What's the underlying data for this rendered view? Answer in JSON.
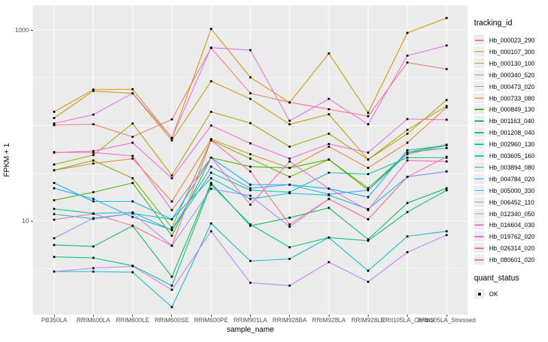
{
  "figure": {
    "background": "#FFFFFF",
    "panel_background": "#EBEBEB",
    "gridline_color": "#FFFFFF",
    "point_color": "#000000",
    "tick_color": "#333333",
    "tick_label_color": "#4D4D4D"
  },
  "y_axis": {
    "title": "FPKM + 1",
    "scale": "log10",
    "ticks": [
      {
        "label": "1000",
        "value": 1000
      },
      {
        "label": "10",
        "value": 10
      }
    ]
  },
  "x_axis": {
    "title": "sample_name"
  },
  "legend": {
    "tracking_title": "tracking_id",
    "quant_title": "quant_status",
    "quant_label": "OK"
  },
  "chart_data": {
    "type": "line",
    "xlabel": "sample_name",
    "ylabel": "FPKM + 1",
    "y_scale": "log10",
    "ylim": [
      1,
      1800
    ],
    "y_breaks_labeled": [
      10,
      1000
    ],
    "y_major_gridlines": [
      10,
      100,
      1000
    ],
    "grid": "on",
    "legend_position": "right",
    "point_shape": "filled-square",
    "quant_status": "OK",
    "categories": [
      "PB350LA",
      "RRIM600LA",
      "RRIM600LE",
      "RRIM600SE",
      "RRIM600PE",
      "RRIM901LA",
      "RRIM928BA",
      "RRIM928LA",
      "RRIM928LE",
      "RRII105LA_Control",
      "RRII105LA_Stressed"
    ],
    "series": [
      {
        "name": "Hb_000023_290",
        "color": "#F8766D",
        "values": [
          101,
          103,
          76,
          116,
          650,
          218,
          175,
          148,
          125,
          457,
          390
        ]
      },
      {
        "name": "Hb_000107_300",
        "color": "#EA8331",
        "values": [
          34,
          40,
          45,
          16,
          72,
          50,
          36,
          60,
          36,
          66,
          155
        ]
      },
      {
        "name": "Hb_000130_100",
        "color": "#D89000",
        "values": [
          139,
          238,
          240,
          74,
          1030,
          320,
          174,
          570,
          136,
          935,
          1340
        ]
      },
      {
        "name": "Hb_000340_520",
        "color": "#C09B00",
        "values": [
          120,
          230,
          217,
          70,
          291,
          190,
          103,
          131,
          44,
          90,
          160
        ]
      },
      {
        "name": "Hb_000473_020",
        "color": "#A3A500",
        "values": [
          39,
          49,
          105,
          30,
          139,
          106,
          60,
          82,
          44,
          82,
          185
        ]
      },
      {
        "name": "Hb_000733_080",
        "color": "#7CAE00",
        "values": [
          34,
          43,
          28,
          8.5,
          70,
          45,
          29,
          44,
          21,
          50,
          62
        ]
      },
      {
        "name": "Hb_000849_130",
        "color": "#39B600",
        "values": [
          16.5,
          20,
          25,
          7,
          46,
          37,
          36,
          44,
          22,
          52,
          63
        ]
      },
      {
        "name": "Hb_001163_040",
        "color": "#00BB4E",
        "values": [
          5.6,
          5.4,
          8.9,
          2.6,
          25,
          8.9,
          10.8,
          13.7,
          6.4,
          15.4,
          22
        ]
      },
      {
        "name": "Hb_001208_040",
        "color": "#00BF7D",
        "values": [
          4.2,
          4.1,
          3.4,
          2.1,
          24,
          9.2,
          5.3,
          6.7,
          6.2,
          12.4,
          21
        ]
      },
      {
        "name": "Hb_002960_130",
        "color": "#00C1A3",
        "values": [
          13.4,
          12,
          12.3,
          8,
          32,
          21,
          20,
          32,
          31,
          46,
          46
        ]
      },
      {
        "name": "Hb_003605_160",
        "color": "#00BFC4",
        "values": [
          2.95,
          2.95,
          2.9,
          1.25,
          9.4,
          3.8,
          4,
          6.7,
          3,
          6.9,
          7.8
        ]
      },
      {
        "name": "Hb_003894_080",
        "color": "#00BAE0",
        "values": [
          11.8,
          10.5,
          12,
          10.4,
          28,
          17,
          19.5,
          18.6,
          13.3,
          29,
          33
        ]
      },
      {
        "name": "Hb_004784_020",
        "color": "#00B0F6",
        "values": [
          25,
          16,
          16,
          10.4,
          46,
          24,
          24,
          21.8,
          17.8,
          55,
          62
        ]
      },
      {
        "name": "Hb_005000_330",
        "color": "#35A2FF",
        "values": [
          22,
          17,
          11,
          8.1,
          37,
          22,
          24,
          19,
          21,
          52,
          58
        ]
      },
      {
        "name": "Hb_006452_110",
        "color": "#9590FF",
        "values": [
          6.6,
          10.7,
          12,
          5.5,
          21.7,
          18.4,
          8.7,
          17,
          10.4,
          29,
          33
        ]
      },
      {
        "name": "Hb_012340_050",
        "color": "#C77CFF",
        "values": [
          2.95,
          3.2,
          3.35,
          1.9,
          7.8,
          2.25,
          2.1,
          3.7,
          2.3,
          4.7,
          7.1
        ]
      },
      {
        "name": "Hb_016604_030",
        "color": "#E76BF3",
        "values": [
          105,
          130,
          218,
          74,
          654,
          617,
          112,
          190,
          103,
          540,
          690
        ]
      },
      {
        "name": "Hb_019762_020",
        "color": "#FA62DB",
        "values": [
          52,
          54,
          66,
          28,
          100,
          65,
          45,
          64,
          52,
          117,
          115
        ]
      },
      {
        "name": "Hb_026314_020",
        "color": "#FF62BC",
        "values": [
          52.6,
          52,
          48,
          13,
          46,
          14.8,
          42,
          21.8,
          13,
          43,
          42
        ]
      },
      {
        "name": "Hb_080601_020",
        "color": "#FF6A98",
        "values": [
          10.3,
          11.9,
          8.9,
          5.5,
          70,
          33,
          9.2,
          17,
          10.4,
          29,
          47
        ]
      }
    ]
  }
}
